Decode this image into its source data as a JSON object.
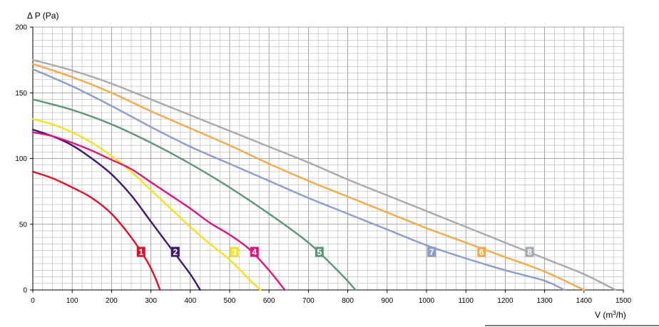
{
  "chart_data": {
    "type": "line",
    "title": "",
    "ylabel": "Δ P (Pa)",
    "xlabel_main": "V (m",
    "xlabel_sup": "3",
    "xlabel_end": "/h)",
    "xlim": [
      0,
      1500
    ],
    "ylim": [
      0,
      200
    ],
    "xticks": [
      0,
      100,
      200,
      300,
      400,
      500,
      600,
      700,
      800,
      900,
      1000,
      1100,
      1200,
      1300,
      1400,
      1500
    ],
    "yticks": [
      0,
      50,
      100,
      150,
      200
    ],
    "grid": true,
    "series": [
      {
        "name": "1",
        "color": "#e30d2b",
        "points": [
          [
            0,
            90
          ],
          [
            50,
            85
          ],
          [
            100,
            78
          ],
          [
            150,
            70
          ],
          [
            200,
            58
          ],
          [
            250,
            40
          ],
          [
            290,
            22
          ],
          [
            310,
            10
          ],
          [
            323,
            0
          ]
        ],
        "label_pos": [
          275,
          29
        ]
      },
      {
        "name": "2",
        "color": "#3d1a6e",
        "points": [
          [
            0,
            122
          ],
          [
            50,
            117
          ],
          [
            100,
            110
          ],
          [
            150,
            100
          ],
          [
            200,
            88
          ],
          [
            250,
            72
          ],
          [
            300,
            52
          ],
          [
            350,
            32
          ],
          [
            400,
            12
          ],
          [
            425,
            0
          ]
        ],
        "label_pos": [
          362,
          29
        ]
      },
      {
        "name": "3",
        "color": "#f5e21b",
        "points": [
          [
            0,
            130
          ],
          [
            50,
            126
          ],
          [
            100,
            120
          ],
          [
            150,
            112
          ],
          [
            200,
            102
          ],
          [
            250,
            90
          ],
          [
            300,
            76
          ],
          [
            350,
            62
          ],
          [
            400,
            48
          ],
          [
            450,
            35
          ],
          [
            500,
            23
          ],
          [
            550,
            8
          ],
          [
            578,
            0
          ]
        ],
        "label_pos": [
          512,
          29
        ]
      },
      {
        "name": "4",
        "color": "#e2137b",
        "points": [
          [
            0,
            120
          ],
          [
            50,
            117
          ],
          [
            100,
            112
          ],
          [
            150,
            106
          ],
          [
            200,
            99
          ],
          [
            250,
            92
          ],
          [
            300,
            82
          ],
          [
            350,
            72
          ],
          [
            400,
            62
          ],
          [
            450,
            51
          ],
          [
            500,
            42
          ],
          [
            550,
            31
          ],
          [
            600,
            15
          ],
          [
            640,
            0
          ]
        ],
        "label_pos": [
          563,
          29
        ]
      },
      {
        "name": "5",
        "color": "#5e9578",
        "points": [
          [
            0,
            145
          ],
          [
            100,
            137
          ],
          [
            200,
            126
          ],
          [
            300,
            112
          ],
          [
            400,
            96
          ],
          [
            500,
            78
          ],
          [
            600,
            58
          ],
          [
            700,
            36
          ],
          [
            780,
            13
          ],
          [
            820,
            0
          ]
        ],
        "label_pos": [
          728,
          29
        ]
      },
      {
        "name": "7",
        "color": "#8e9cc9",
        "points": [
          [
            0,
            168
          ],
          [
            100,
            155
          ],
          [
            200,
            140
          ],
          [
            300,
            124
          ],
          [
            400,
            109
          ],
          [
            500,
            96
          ],
          [
            600,
            83
          ],
          [
            700,
            70
          ],
          [
            800,
            58
          ],
          [
            900,
            46
          ],
          [
            1000,
            34
          ],
          [
            1100,
            24
          ],
          [
            1200,
            15
          ],
          [
            1300,
            7
          ],
          [
            1350,
            0
          ]
        ],
        "label_pos": [
          1013,
          29
        ]
      },
      {
        "name": "6",
        "color": "#f4a94a",
        "points": [
          [
            0,
            172
          ],
          [
            100,
            162
          ],
          [
            200,
            150
          ],
          [
            300,
            136
          ],
          [
            400,
            123
          ],
          [
            500,
            110
          ],
          [
            600,
            96
          ],
          [
            700,
            83
          ],
          [
            800,
            71
          ],
          [
            900,
            59
          ],
          [
            1000,
            47
          ],
          [
            1100,
            36
          ],
          [
            1200,
            25
          ],
          [
            1300,
            14
          ],
          [
            1400,
            0
          ]
        ],
        "label_pos": [
          1140,
          29
        ]
      },
      {
        "name": "8",
        "color": "#a6a9ad",
        "points": [
          [
            0,
            175
          ],
          [
            100,
            167
          ],
          [
            200,
            157
          ],
          [
            300,
            145
          ],
          [
            400,
            133
          ],
          [
            500,
            121
          ],
          [
            600,
            109
          ],
          [
            700,
            97
          ],
          [
            800,
            84
          ],
          [
            900,
            72
          ],
          [
            1000,
            60
          ],
          [
            1100,
            48
          ],
          [
            1200,
            36
          ],
          [
            1300,
            24
          ],
          [
            1400,
            12
          ],
          [
            1480,
            0
          ]
        ],
        "label_pos": [
          1262,
          29
        ]
      }
    ]
  }
}
